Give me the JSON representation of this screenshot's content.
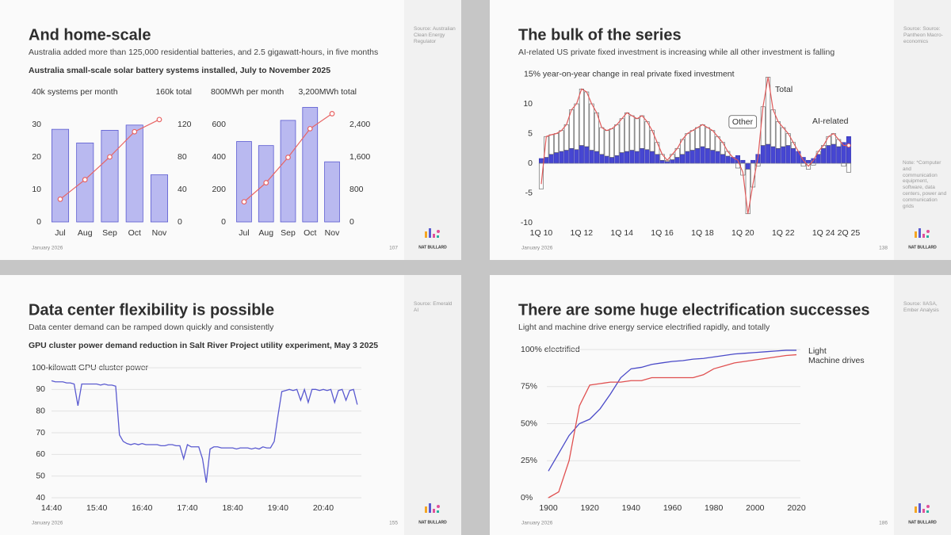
{
  "slides": [
    {
      "title": "And home-scale",
      "subtitle": "Australia added more than 125,000 residential batteries, and 2.5 gigawatt-hours, in five months",
      "heading": "Australia small-scale solar battery systems installed, July to November 2025",
      "source": "Source: Australian Clean Energy Regulator",
      "date": "January 2026",
      "page": 107,
      "brand": "NAT BULLARD"
    },
    {
      "title": "The bulk of the series",
      "subtitle": "AI-related US private fixed investment is increasing while all other investment is falling",
      "source": "Source: Source: Pantheon Macro-economics",
      "note": "Note: *Computer and communication equipment, software, data centers, power and communication grids",
      "date": "January 2026",
      "page": 138,
      "brand": "NAT BULLARD"
    },
    {
      "title": "Data center flexibility is possible",
      "subtitle": "Data center demand can be ramped down quickly and consistently",
      "heading": "GPU cluster power demand reduction in Salt River Project utility experiment, May 3 2025",
      "source": "Source: Emerald AI",
      "date": "January 2026",
      "page": 155,
      "brand": "NAT BULLARD"
    },
    {
      "title": "There are some huge electrification successes",
      "subtitle": "Light and machine drive energy service electrified rapidly, and totally",
      "source": "Source: IIASA, Ember Analysis",
      "date": "January 2026",
      "page": 186,
      "brand": "NAT BULLARD"
    }
  ],
  "chart_data": [
    {
      "type": "bar",
      "categories": [
        "Jul",
        "Aug",
        "Sep",
        "Oct",
        "Nov"
      ],
      "series": [
        {
          "type": "bar",
          "color": "#b9b9f0",
          "edgecolor": "#5a5ad0",
          "values": [
            28.5,
            24.3,
            28.2,
            29.8,
            14.5
          ]
        },
        {
          "type": "line",
          "axis": "y2",
          "color": "#e86464",
          "values": [
            28,
            52,
            80,
            111,
            126
          ]
        }
      ],
      "ylim": [
        0,
        40
      ],
      "yticks": [
        0,
        10,
        20,
        30,
        {
          "value": 40,
          "label": "40k systems per month"
        }
      ],
      "y2lim": [
        0,
        160
      ],
      "y2ticks": [
        0,
        40,
        80,
        120,
        {
          "value": 160,
          "label": "160k total"
        }
      ]
    },
    {
      "type": "bar",
      "categories": [
        "Jul",
        "Aug",
        "Sep",
        "Oct",
        "Nov"
      ],
      "series": [
        {
          "type": "bar",
          "color": "#b9b9f0",
          "edgecolor": "#5a5ad0",
          "values": [
            495,
            470,
            625,
            705,
            370
          ]
        },
        {
          "type": "line",
          "axis": "y2",
          "color": "#e86464",
          "values": [
            495,
            965,
            1590,
            2295,
            2665
          ]
        }
      ],
      "ylim": [
        0,
        800
      ],
      "yticks": [
        0,
        200,
        400,
        600,
        {
          "value": 800,
          "label": "800MWh per month"
        }
      ],
      "y2lim": [
        0,
        3200
      ],
      "y2ticks": [
        0,
        800,
        {
          "value": 1600,
          "label": "1,600"
        },
        {
          "value": 2400,
          "label": "2,400"
        },
        {
          "value": 3200,
          "label": "3,200MWh total"
        }
      ]
    },
    {
      "type": "bar",
      "stacked": true,
      "categories": [
        "1Q 10",
        null,
        null,
        null,
        null,
        null,
        null,
        null,
        "1Q 12",
        null,
        null,
        null,
        null,
        null,
        null,
        null,
        "1Q 14",
        null,
        null,
        null,
        null,
        null,
        null,
        null,
        "1Q 16",
        null,
        null,
        null,
        null,
        null,
        null,
        null,
        "1Q 18",
        null,
        null,
        null,
        null,
        null,
        null,
        null,
        "1Q 20",
        null,
        null,
        null,
        null,
        null,
        null,
        null,
        "1Q 22",
        null,
        null,
        null,
        null,
        null,
        null,
        null,
        "1Q 24",
        null,
        null,
        null,
        null,
        "2Q 25"
      ],
      "series": [
        {
          "name": "AI-related",
          "type": "bar",
          "color": "#4646d2",
          "edgecolor": "#3434b0",
          "values": [
            0.8,
            1.0,
            1.5,
            1.8,
            2.0,
            2.2,
            2.5,
            2.3,
            3.0,
            2.8,
            2.2,
            2.0,
            1.5,
            1.2,
            1.0,
            1.3,
            1.8,
            2.0,
            2.2,
            2.0,
            2.5,
            2.3,
            2.0,
            1.5,
            0.5,
            0.3,
            0.6,
            1.0,
            1.5,
            2.0,
            2.2,
            2.5,
            2.8,
            2.5,
            2.2,
            2.0,
            1.5,
            1.2,
            1.0,
            1.3,
            0.5,
            -1.0,
            0.5,
            1.5,
            3.0,
            3.2,
            2.8,
            2.5,
            2.8,
            3.0,
            2.5,
            2.0,
            1.0,
            0.5,
            0.8,
            1.5,
            2.5,
            3.0,
            3.2,
            2.8,
            3.5,
            4.5
          ]
        },
        {
          "name": "Other",
          "type": "bar",
          "color": "#ffffff",
          "edgecolor": "#555555",
          "values": [
            -4.3,
            3.5,
            3.3,
            3.2,
            3.5,
            4.3,
            6.5,
            7.7,
            9.5,
            9.2,
            7.8,
            6.5,
            4.5,
            4.3,
            4.8,
            5.2,
            5.7,
            6.5,
            5.8,
            5.5,
            5.5,
            4.7,
            3.5,
            2.0,
            1.0,
            0.2,
            0.9,
            1.5,
            2.5,
            3.0,
            3.3,
            3.5,
            3.7,
            3.5,
            3.3,
            2.5,
            2.0,
            0.8,
            0.0,
            -0.8,
            -2.0,
            -7.5,
            -4.0,
            -0.5,
            6.5,
            11.3,
            6.2,
            4.5,
            3.2,
            2.0,
            1.0,
            0.0,
            -0.5,
            -1.0,
            -0.3,
            0.5,
            0.5,
            1.5,
            1.8,
            1.2,
            -0.5,
            -1.5
          ]
        },
        {
          "name": "Total",
          "type": "line",
          "color": "#e05a5a",
          "values": [
            -3.5,
            4.5,
            4.8,
            5.0,
            5.5,
            6.5,
            9.0,
            10.0,
            12.5,
            12.0,
            10.0,
            8.5,
            6.0,
            5.5,
            5.8,
            6.5,
            7.5,
            8.5,
            8.0,
            7.5,
            8.0,
            7.0,
            5.5,
            3.5,
            1.5,
            0.5,
            1.5,
            2.5,
            4.0,
            5.0,
            5.5,
            6.0,
            6.5,
            6.0,
            5.5,
            4.5,
            3.5,
            2.0,
            1.0,
            0.5,
            -1.5,
            -8.5,
            -3.5,
            1.0,
            9.5,
            14.5,
            9.0,
            7.0,
            6.0,
            5.0,
            3.5,
            2.0,
            0.5,
            -0.5,
            0.5,
            2.0,
            3.0,
            4.5,
            5.0,
            4.0,
            3.0,
            3.0
          ]
        }
      ],
      "ylim": [
        -10,
        15
      ],
      "yticks": [
        -10,
        -5,
        0,
        5,
        10,
        {
          "value": 15,
          "label": "15% year-on-year change in real private fixed investment"
        }
      ]
    },
    {
      "type": "line",
      "color": "#5a5ad0",
      "grid": true,
      "x": [
        "14:40",
        "14:45",
        "14:50",
        "14:55",
        "15:00",
        "15:05",
        "15:10",
        "15:15",
        "15:20",
        "15:25",
        "15:30",
        "15:35",
        "15:40",
        "15:45",
        "15:50",
        "15:55",
        "16:00",
        "16:05",
        "16:10",
        "16:15",
        "16:20",
        "16:25",
        "16:30",
        "16:35",
        "16:40",
        "16:45",
        "16:50",
        "16:55",
        "17:00",
        "17:05",
        "17:10",
        "17:15",
        "17:20",
        "17:25",
        "17:30",
        "17:35",
        "17:40",
        "17:45",
        "17:50",
        "17:55",
        "18:00",
        "18:05",
        "18:10",
        "18:15",
        "18:20",
        "18:25",
        "18:30",
        "18:35",
        "18:40",
        "18:45",
        "18:50",
        "18:55",
        "19:00",
        "19:05",
        "19:10",
        "19:15",
        "19:20",
        "19:25",
        "19:30",
        "19:35",
        "19:40",
        "19:45",
        "19:50",
        "19:55",
        "20:00",
        "20:05",
        "20:10",
        "20:15",
        "20:20",
        "20:25",
        "20:30",
        "20:35",
        "20:40",
        "20:45",
        "20:50",
        "20:55",
        "21:00",
        "21:05",
        "21:10",
        "21:15",
        "21:20",
        "21:25"
      ],
      "values": [
        94,
        93.5,
        93.5,
        93.5,
        93,
        93,
        92.5,
        82.5,
        92.5,
        92.5,
        92.5,
        92.5,
        92.5,
        92,
        92.5,
        92,
        92,
        91.5,
        69,
        66,
        65,
        64.5,
        65,
        64.5,
        65,
        64.5,
        64.5,
        64.5,
        64.5,
        64,
        64,
        64.5,
        64.5,
        64,
        64,
        58,
        64.5,
        63.5,
        63.5,
        63.5,
        58,
        47,
        62.5,
        63.5,
        63.5,
        63,
        63,
        63,
        63,
        62.5,
        63,
        63,
        63,
        62.5,
        63,
        62.5,
        63.5,
        63,
        63,
        66,
        78,
        89,
        89.5,
        90,
        89.5,
        90,
        85,
        90,
        84,
        90,
        90,
        89.5,
        90,
        89.5,
        90,
        84,
        89.5,
        90,
        85,
        89.5,
        90,
        83
      ],
      "xlim": [
        "14:40",
        "21:30"
      ],
      "xticks": [
        "14:40",
        "15:40",
        "16:40",
        "17:40",
        "18:40",
        "19:40",
        "20:40"
      ],
      "ylim": [
        40,
        100
      ],
      "yticks": [
        40,
        50,
        60,
        70,
        80,
        90,
        {
          "value": 100,
          "label": "100-kilowatt GPU cluster power"
        }
      ]
    },
    {
      "type": "line",
      "grid": true,
      "x": [
        1900,
        1905,
        1910,
        1915,
        1920,
        1925,
        1930,
        1935,
        1940,
        1945,
        1950,
        1955,
        1960,
        1965,
        1970,
        1975,
        1980,
        1985,
        1990,
        1995,
        2000,
        2005,
        2010,
        2015,
        2020
      ],
      "series": [
        {
          "name": "Light",
          "color": "#4a4ac8",
          "values": [
            18,
            30,
            42,
            50,
            53,
            60,
            70,
            81,
            87,
            88,
            90,
            91,
            92,
            92.5,
            93.5,
            94,
            95,
            96,
            97,
            97.5,
            98,
            98.5,
            99,
            99.5,
            99.5
          ]
        },
        {
          "name": "Machine drives",
          "color": "#e05050",
          "values": [
            0,
            4,
            25,
            62,
            76,
            77,
            78,
            78,
            79,
            79,
            81,
            81,
            81,
            81,
            81,
            83,
            87,
            89,
            91,
            92,
            93,
            94,
            95,
            96,
            96.5
          ]
        }
      ],
      "xlim": [
        1900,
        2020
      ],
      "xticks": [
        1900,
        1920,
        1940,
        1960,
        1980,
        2000,
        2020
      ],
      "ylim": [
        0,
        100
      ],
      "yticks": [
        {
          "value": 0,
          "label": "0%"
        },
        {
          "value": 25,
          "label": "25%"
        },
        {
          "value": 50,
          "label": "50%"
        },
        {
          "value": 75,
          "label": "75%"
        },
        {
          "value": 100,
          "label": "100% electrified"
        }
      ]
    }
  ]
}
